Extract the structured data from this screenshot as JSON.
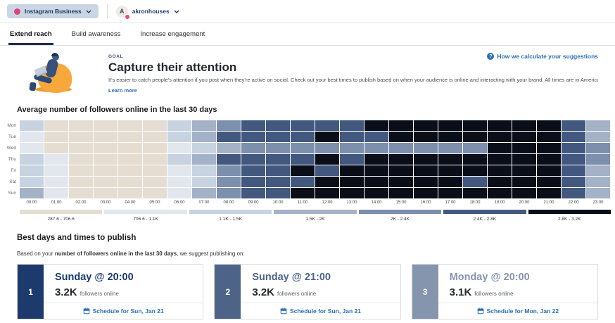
{
  "header": {
    "network_selector": {
      "label": "Instagram Business"
    },
    "profile": {
      "avatar_letter": "A",
      "name": "akronhouses"
    }
  },
  "tabs": [
    {
      "label": "Extend reach",
      "active": true
    },
    {
      "label": "Build awareness",
      "active": false
    },
    {
      "label": "Increase engagement",
      "active": false
    }
  ],
  "goal": {
    "eyebrow": "GOAL",
    "title": "Capture their attention",
    "description": "It's easier to catch people's attention if you post when they're active on social. Check out your best times to publish based on when your audience is online and interacting with your brand. All times are in America/New_York, which is the time zone selected in your account settings.",
    "learn_more": "Learn more",
    "help_icon": "?",
    "help_link": "How we calculate your suggestions"
  },
  "chart_data": {
    "type": "heatmap",
    "title": "Average number of followers online in the last 30 days",
    "rows": [
      "Mon",
      "Tue",
      "Wed",
      "Thu",
      "Fri",
      "Sat",
      "Sun"
    ],
    "columns": [
      "00:00",
      "01:00",
      "02:00",
      "03:00",
      "04:00",
      "05:00",
      "06:00",
      "07:00",
      "08:00",
      "09:00",
      "10:00",
      "11:00",
      "12:00",
      "13:00",
      "14:00",
      "15:00",
      "16:00",
      "17:00",
      "18:00",
      "19:00",
      "20:00",
      "21:00",
      "22:00",
      "23:00"
    ],
    "legend": [
      {
        "label": "287.6 - 706.6",
        "color": "#e5ddd1"
      },
      {
        "label": "706.6 - 1.1K",
        "color": "#e2e7ee"
      },
      {
        "label": "1.1K - 1.5K",
        "color": "#c8d3e1"
      },
      {
        "label": "1.5K - 2K",
        "color": "#a4b2c7"
      },
      {
        "label": "2K - 2.4K",
        "color": "#7c8fad"
      },
      {
        "label": "2.4K - 2.8K",
        "color": "#42587f"
      },
      {
        "label": "2.8K - 3.2K",
        "color": "#0a0e18"
      }
    ],
    "cells_bucket_index": [
      [
        3,
        1,
        1,
        1,
        1,
        1,
        3,
        4,
        5,
        6,
        6,
        6,
        6,
        6,
        7,
        7,
        7,
        7,
        7,
        7,
        7,
        7,
        6,
        4
      ],
      [
        2,
        1,
        1,
        1,
        1,
        1,
        3,
        4,
        6,
        6,
        6,
        6,
        7,
        6,
        6,
        7,
        7,
        7,
        7,
        7,
        7,
        7,
        6,
        4
      ],
      [
        2,
        1,
        1,
        1,
        1,
        1,
        2,
        3,
        4,
        5,
        5,
        5,
        5,
        5,
        5,
        5,
        5,
        5,
        5,
        7,
        7,
        7,
        6,
        5
      ],
      [
        3,
        2,
        1,
        1,
        1,
        1,
        3,
        4,
        6,
        6,
        6,
        6,
        7,
        6,
        7,
        7,
        7,
        7,
        7,
        7,
        7,
        7,
        6,
        5
      ],
      [
        3,
        2,
        1,
        1,
        1,
        1,
        2,
        3,
        5,
        6,
        6,
        7,
        6,
        7,
        7,
        7,
        7,
        7,
        7,
        7,
        7,
        7,
        6,
        4
      ],
      [
        3,
        2,
        1,
        1,
        1,
        1,
        2,
        3,
        5,
        6,
        6,
        6,
        7,
        7,
        7,
        7,
        7,
        7,
        6,
        7,
        7,
        7,
        6,
        4
      ],
      [
        4,
        2,
        1,
        1,
        1,
        1,
        2,
        4,
        5,
        6,
        6,
        7,
        7,
        7,
        7,
        7,
        7,
        7,
        7,
        7,
        7,
        7,
        6,
        4
      ]
    ]
  },
  "best_times": {
    "heading": "Best days and times to publish",
    "intro_prefix": "Based on your ",
    "intro_bold": "number of followers online in the last 30 days",
    "intro_suffix": ", we suggest publishing on:",
    "suggestions": [
      {
        "rank": "1",
        "title": "Sunday @ 20:00",
        "metric": "3.2K",
        "metric_label": "followers online",
        "action": "Schedule for Sun, Jan 21",
        "accent": "#1d3a6d"
      },
      {
        "rank": "2",
        "title": "Sunday @ 21:00",
        "metric": "3.2K",
        "metric_label": "followers online",
        "action": "Schedule for Sun, Jan 21",
        "accent": "#4d6488"
      },
      {
        "rank": "3",
        "title": "Monday @ 20:00",
        "metric": "3.1K",
        "metric_label": "followers online",
        "action": "Schedule for Mon, Jan 22",
        "accent": "#8595ae"
      }
    ]
  }
}
